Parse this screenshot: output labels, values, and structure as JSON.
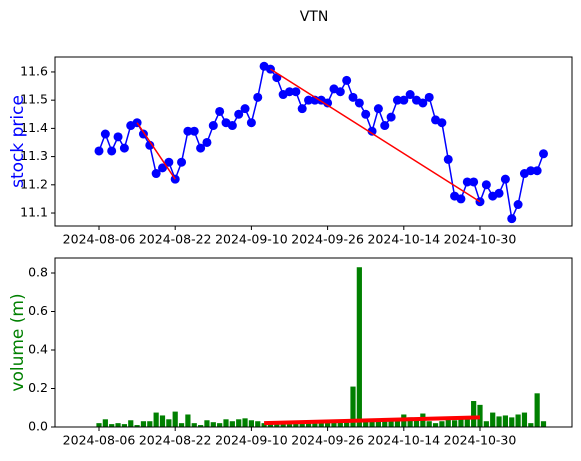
{
  "chart_data": [
    {
      "type": "line",
      "title": "VTN",
      "ylabel": "stock price",
      "label_color": "#0000ff",
      "categories": [
        "2024-08-06",
        null,
        null,
        null,
        null,
        null,
        null,
        null,
        null,
        null,
        null,
        null,
        "2024-08-22",
        null,
        null,
        null,
        null,
        null,
        null,
        null,
        null,
        null,
        null,
        null,
        "2024-09-10",
        null,
        null,
        null,
        null,
        null,
        null,
        null,
        null,
        null,
        null,
        null,
        "2024-09-26",
        null,
        null,
        null,
        null,
        null,
        null,
        null,
        null,
        null,
        null,
        null,
        "2024-10-14",
        null,
        null,
        null,
        null,
        null,
        null,
        null,
        null,
        null,
        null,
        null,
        "2024-10-30",
        null,
        null,
        null,
        null,
        null,
        null,
        null,
        null,
        null,
        null
      ],
      "series": [
        {
          "name": "price",
          "color": "#0000ff",
          "values": [
            11.32,
            11.38,
            11.32,
            11.37,
            11.33,
            11.41,
            11.42,
            11.38,
            11.34,
            11.24,
            11.26,
            11.28,
            11.22,
            11.28,
            11.39,
            11.39,
            11.33,
            11.35,
            11.41,
            11.46,
            11.42,
            11.41,
            11.45,
            11.47,
            11.42,
            11.51,
            11.62,
            11.61,
            11.58,
            11.52,
            11.53,
            11.53,
            11.47,
            11.5,
            11.5,
            11.5,
            11.49,
            11.54,
            11.53,
            11.57,
            11.51,
            11.49,
            11.45,
            11.39,
            11.47,
            11.41,
            11.44,
            11.5,
            11.5,
            11.52,
            11.5,
            11.49,
            11.51,
            11.43,
            11.42,
            11.29,
            11.16,
            11.15,
            11.21,
            11.21,
            11.14,
            11.2,
            11.16,
            11.17,
            11.22,
            11.08,
            11.13,
            11.24,
            11.25,
            11.25,
            11.31
          ]
        }
      ],
      "trend_lines": [
        {
          "color": "#ff0000",
          "from": 6,
          "to": 12,
          "values": [
            11.42,
            11.22
          ]
        },
        {
          "color": "#ff0000",
          "from": 27,
          "to": 60,
          "values": [
            11.61,
            11.14
          ]
        }
      ],
      "ylim": [
        11.054,
        11.653
      ],
      "yticks": [
        11.1,
        11.2,
        11.3,
        11.4,
        11.5,
        11.6
      ]
    },
    {
      "type": "bar",
      "ylabel": "volume (m)",
      "label_color": "#008000",
      "categories": [
        "2024-08-06",
        null,
        null,
        null,
        null,
        null,
        null,
        null,
        null,
        null,
        null,
        null,
        "2024-08-22",
        null,
        null,
        null,
        null,
        null,
        null,
        null,
        null,
        null,
        null,
        null,
        "2024-09-10",
        null,
        null,
        null,
        null,
        null,
        null,
        null,
        null,
        null,
        null,
        null,
        "2024-09-26",
        null,
        null,
        null,
        null,
        null,
        null,
        null,
        null,
        null,
        null,
        null,
        "2024-10-14",
        null,
        null,
        null,
        null,
        null,
        null,
        null,
        null,
        null,
        null,
        null,
        "2024-10-30",
        null,
        null,
        null,
        null,
        null,
        null,
        null,
        null,
        null,
        null
      ],
      "color": "#008000",
      "values": [
        0.02,
        0.04,
        0.015,
        0.02,
        0.015,
        0.035,
        0.01,
        0.03,
        0.03,
        0.075,
        0.06,
        0.04,
        0.08,
        0.02,
        0.065,
        0.02,
        0.01,
        0.035,
        0.025,
        0.02,
        0.04,
        0.03,
        0.04,
        0.045,
        0.035,
        0.03,
        0.02,
        0.015,
        0.02,
        0.03,
        0.015,
        0.02,
        0.025,
        0.03,
        0.025,
        0.03,
        0.03,
        0.025,
        0.03,
        0.03,
        0.21,
        0.83,
        0.03,
        0.04,
        0.03,
        0.035,
        0.03,
        0.03,
        0.065,
        0.05,
        0.04,
        0.07,
        0.03,
        0.02,
        0.03,
        0.04,
        0.035,
        0.04,
        0.04,
        0.135,
        0.115,
        0.03,
        0.075,
        0.055,
        0.06,
        0.05,
        0.065,
        0.075,
        0.02,
        0.175,
        0.03
      ],
      "trend_lines": [
        {
          "color": "#ff0000",
          "from": 26,
          "to": 60,
          "values": [
            0.02,
            0.05
          ]
        }
      ],
      "ylim": [
        0,
        0.878
      ],
      "yticks": [
        {
          "value": 0,
          "label": "0.0"
        },
        0.2,
        0.4,
        0.6,
        0.8
      ]
    }
  ]
}
